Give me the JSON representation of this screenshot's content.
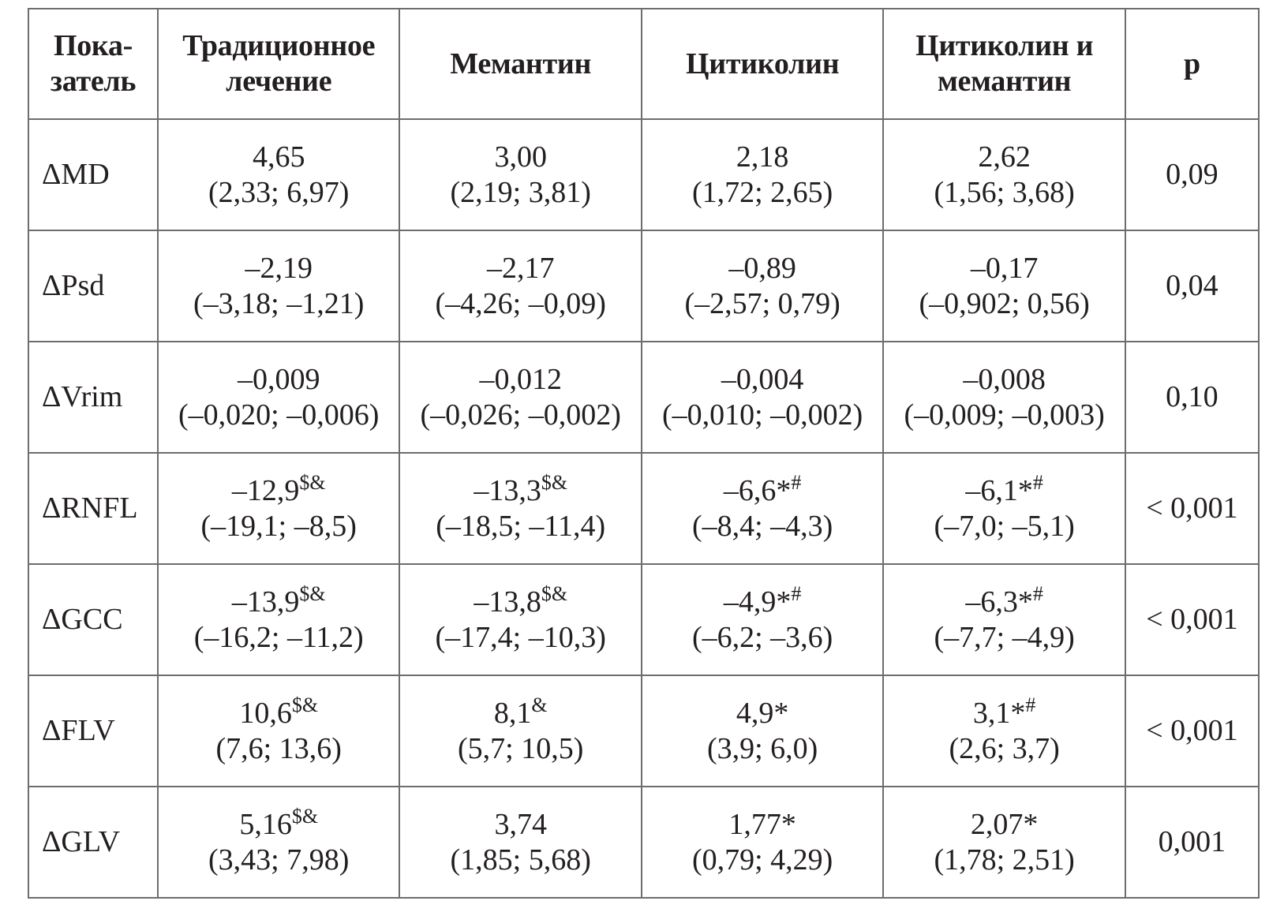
{
  "table": {
    "headers": [
      {
        "line1": "Пока-",
        "line2": "затель"
      },
      {
        "line1": "Традиционное",
        "line2": "лечение"
      },
      {
        "line1": "Мемантин",
        "line2": ""
      },
      {
        "line1": "Цитиколин",
        "line2": ""
      },
      {
        "line1": "Цитиколин и",
        "line2": "мемантин"
      },
      {
        "line1": "p",
        "line2": ""
      }
    ],
    "rows": [
      {
        "indicator": "ΔMD",
        "cells": [
          {
            "value": "4,65",
            "sup": "",
            "range": "(2,33; 6,97)"
          },
          {
            "value": "3,00",
            "sup": "",
            "range": "(2,19; 3,81)"
          },
          {
            "value": "2,18",
            "sup": "",
            "range": "(1,72; 2,65)"
          },
          {
            "value": "2,62",
            "sup": "",
            "range": "(1,56; 3,68)"
          }
        ],
        "p": "0,09"
      },
      {
        "indicator": "ΔPsd",
        "cells": [
          {
            "value": "–2,19",
            "sup": "",
            "range": "(–3,18; –1,21)"
          },
          {
            "value": "–2,17",
            "sup": "",
            "range": "(–4,26; –0,09)"
          },
          {
            "value": "–0,89",
            "sup": "",
            "range": "(–2,57; 0,79)"
          },
          {
            "value": "–0,17",
            "sup": "",
            "range": "(–0,902; 0,56)"
          }
        ],
        "p": "0,04"
      },
      {
        "indicator": "ΔVrim",
        "cells": [
          {
            "value": "–0,009",
            "sup": "",
            "range": "(–0,020; –0,006)"
          },
          {
            "value": "–0,012",
            "sup": "",
            "range": "(–0,026; –0,002)"
          },
          {
            "value": "–0,004",
            "sup": "",
            "range": "(–0,010; –0,002)"
          },
          {
            "value": "–0,008",
            "sup": "",
            "range": "(–0,009; –0,003)"
          }
        ],
        "p": "0,10"
      },
      {
        "indicator": "ΔRNFL",
        "cells": [
          {
            "value": "–12,9",
            "sup": "$&",
            "range": "(–19,1; –8,5)"
          },
          {
            "value": "–13,3",
            "sup": "$&",
            "range": "(–18,5; –11,4)"
          },
          {
            "value": "–6,6*",
            "sup": "#",
            "range": "(–8,4; –4,3)"
          },
          {
            "value": "–6,1*",
            "sup": "#",
            "range": "(–7,0; –5,1)"
          }
        ],
        "p": "< 0,001"
      },
      {
        "indicator": "ΔGCC",
        "cells": [
          {
            "value": "–13,9",
            "sup": "$&",
            "range": "(–16,2; –11,2)"
          },
          {
            "value": "–13,8",
            "sup": "$&",
            "range": "(–17,4; –10,3)"
          },
          {
            "value": "–4,9*",
            "sup": "#",
            "range": "(–6,2; –3,6)"
          },
          {
            "value": "–6,3*",
            "sup": "#",
            "range": "(–7,7; –4,9)"
          }
        ],
        "p": "< 0,001"
      },
      {
        "indicator": "ΔFLV",
        "cells": [
          {
            "value": "10,6",
            "sup": "$&",
            "range": "(7,6; 13,6)"
          },
          {
            "value": "8,1",
            "sup": "&",
            "range": "(5,7; 10,5)"
          },
          {
            "value": "4,9*",
            "sup": "",
            "range": "(3,9; 6,0)"
          },
          {
            "value": "3,1*",
            "sup": "#",
            "range": "(2,6; 3,7)"
          }
        ],
        "p": "< 0,001"
      },
      {
        "indicator": "ΔGLV",
        "cells": [
          {
            "value": "5,16",
            "sup": "$&",
            "range": "(3,43; 7,98)"
          },
          {
            "value": "3,74",
            "sup": "",
            "range": "(1,85; 5,68)"
          },
          {
            "value": "1,77*",
            "sup": "",
            "range": "(0,79; 4,29)"
          },
          {
            "value": "2,07*",
            "sup": "",
            "range": "(1,78; 2,51)"
          }
        ],
        "p": "0,001"
      }
    ]
  }
}
